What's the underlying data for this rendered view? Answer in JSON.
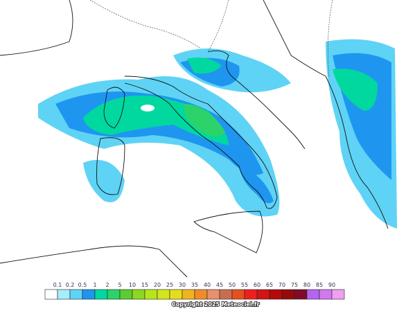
{
  "legend": {
    "labels": [
      "0.1",
      "0.2",
      "0.5",
      "1",
      "2",
      "5",
      "10",
      "15",
      "20",
      "25",
      "30",
      "35",
      "40",
      "45",
      "50",
      "55",
      "60",
      "65",
      "70",
      "75",
      "80",
      "85",
      "90"
    ],
    "colors": [
      "#ffffff",
      "#a6eefa",
      "#5fd3f5",
      "#1e96f0",
      "#00d8a0",
      "#2bd36a",
      "#5ccc30",
      "#8cd820",
      "#b4e61e",
      "#d2e61e",
      "#e6dc1e",
      "#f0b41e",
      "#f08c28",
      "#e8906c",
      "#c86e50",
      "#e6501e",
      "#f01e1e",
      "#d21414",
      "#b40a0a",
      "#960a0a",
      "#820a28",
      "#b464f0",
      "#d278f0",
      "#f0a0f0"
    ]
  },
  "copyright": "Copyright 2025 Meteociel.fr"
}
